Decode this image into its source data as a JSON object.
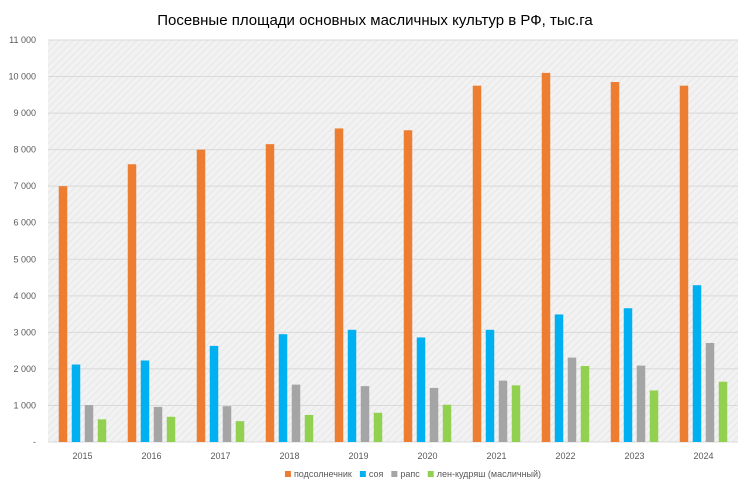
{
  "chart_data": {
    "type": "bar",
    "title": "Посевные площади основных масличных культур в РФ, тыс.га",
    "categories": [
      "2015",
      "2016",
      "2017",
      "2018",
      "2019",
      "2020",
      "2021",
      "2022",
      "2023",
      "2024"
    ],
    "series": [
      {
        "name": "подсолнечник",
        "color": "#ED7D31",
        "values": [
          7000,
          7600,
          8000,
          8150,
          8580,
          8530,
          9750,
          10100,
          9850,
          9750
        ]
      },
      {
        "name": "соя",
        "color": "#00B0F0",
        "values": [
          2120,
          2230,
          2630,
          2950,
          3070,
          2860,
          3070,
          3490,
          3660,
          4290
        ]
      },
      {
        "name": "рапс",
        "color": "#A5A5A5",
        "values": [
          1010,
          960,
          980,
          1570,
          1530,
          1480,
          1680,
          2310,
          2090,
          2710
        ]
      },
      {
        "name": "лен-кудряш (масличный)",
        "color": "#92D050",
        "values": [
          620,
          690,
          570,
          740,
          800,
          1020,
          1550,
          2080,
          1410,
          1650
        ]
      }
    ],
    "ylim": [
      0,
      11000
    ],
    "yticks": [
      "-",
      "1 000",
      "2 000",
      "3 000",
      "4 000",
      "5 000",
      "6 000",
      "7 000",
      "8 000",
      "9 000",
      "10 000",
      "11 000"
    ],
    "grid": true,
    "legend_position": "bottom"
  }
}
